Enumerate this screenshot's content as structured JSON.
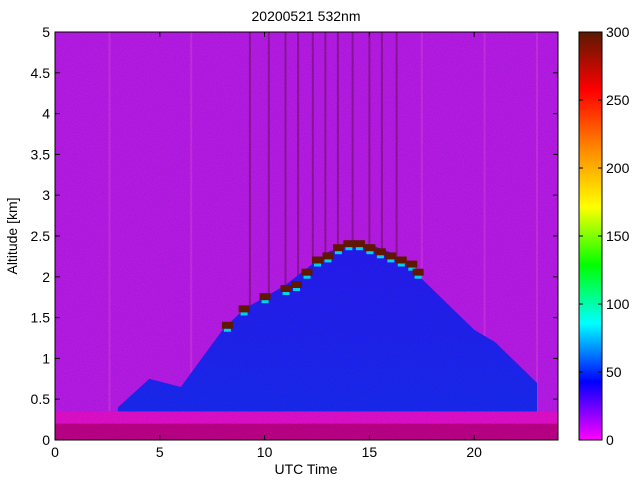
{
  "chart_data": {
    "type": "heatmap",
    "title": "20200521 532nm",
    "xlabel": "UTC Time",
    "ylabel": "Altitude [km]",
    "xlim": [
      0,
      24
    ],
    "ylim": [
      0,
      5
    ],
    "x_ticks": [
      0,
      5,
      10,
      15,
      20
    ],
    "x_tick_labels": [
      "0",
      "5",
      "10",
      "15",
      "20"
    ],
    "y_ticks": [
      0,
      0.5,
      1,
      1.5,
      2,
      2.5,
      3,
      3.5,
      4,
      4.5,
      5
    ],
    "y_tick_labels": [
      "0",
      "0.5",
      "1",
      "1.5",
      "2",
      "2.5",
      "3",
      "3.5",
      "4",
      "4.5",
      "5"
    ],
    "colorbar": {
      "range": [
        0,
        300
      ],
      "ticks": [
        0,
        50,
        100,
        150,
        200,
        250,
        300
      ],
      "tick_labels": [
        "0",
        "50",
        "100",
        "150",
        "200",
        "250",
        "300"
      ],
      "colormap": [
        "#ff00ff",
        "#0000ff",
        "#00ffff",
        "#00ff00",
        "#ffff00",
        "#ff8800",
        "#ff0000",
        "#5a1a00"
      ]
    },
    "background_value_above_layer": 25,
    "surface_layer": {
      "altitude_km": [
        0.2,
        0.35
      ],
      "value": 15
    },
    "boundary_layer_top": [
      {
        "x": 3,
        "y": 0.4
      },
      {
        "x": 4.5,
        "y": 0.75
      },
      {
        "x": 6,
        "y": 0.65
      },
      {
        "x": 7,
        "y": 1.0
      },
      {
        "x": 8,
        "y": 1.35
      },
      {
        "x": 9,
        "y": 1.6
      },
      {
        "x": 10,
        "y": 1.75
      },
      {
        "x": 11,
        "y": 1.9
      },
      {
        "x": 12,
        "y": 2.1
      },
      {
        "x": 13,
        "y": 2.3
      },
      {
        "x": 14,
        "y": 2.4
      },
      {
        "x": 15,
        "y": 2.4
      },
      {
        "x": 16,
        "y": 2.3
      },
      {
        "x": 17,
        "y": 2.1
      },
      {
        "x": 18,
        "y": 1.85
      },
      {
        "x": 19,
        "y": 1.6
      },
      {
        "x": 20,
        "y": 1.35
      },
      {
        "x": 21,
        "y": 1.2
      },
      {
        "x": 22,
        "y": 0.95
      },
      {
        "x": 23,
        "y": 0.7
      }
    ],
    "cloud_top_band": [
      {
        "x": 8.2,
        "y": 1.4
      },
      {
        "x": 9,
        "y": 1.6
      },
      {
        "x": 10,
        "y": 1.75
      },
      {
        "x": 11,
        "y": 1.85
      },
      {
        "x": 11.5,
        "y": 1.9
      },
      {
        "x": 12,
        "y": 2.05
      },
      {
        "x": 12.5,
        "y": 2.2
      },
      {
        "x": 13,
        "y": 2.25
      },
      {
        "x": 13.5,
        "y": 2.35
      },
      {
        "x": 14,
        "y": 2.4
      },
      {
        "x": 14.5,
        "y": 2.4
      },
      {
        "x": 15,
        "y": 2.35
      },
      {
        "x": 15.5,
        "y": 2.3
      },
      {
        "x": 16,
        "y": 2.25
      },
      {
        "x": 16.5,
        "y": 2.2
      },
      {
        "x": 17,
        "y": 2.15
      },
      {
        "x": 17.3,
        "y": 2.05
      }
    ],
    "vertical_streaks_utc": [
      2.6,
      6.5,
      9.3,
      10.2,
      11.0,
      11.6,
      12.3,
      12.9,
      13.5,
      14.2,
      15.0,
      15.6,
      16.3,
      17.5,
      20.5,
      23.0
    ]
  }
}
